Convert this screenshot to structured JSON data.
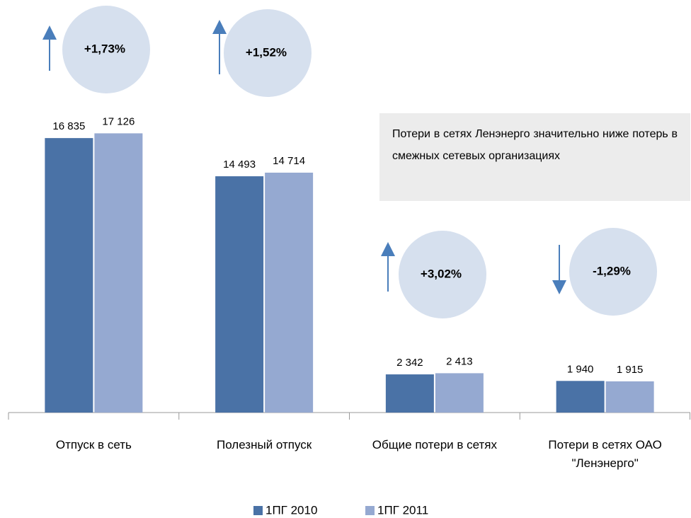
{
  "chart_data": {
    "type": "bar",
    "categories": [
      "Отпуск в сеть",
      "Полезный отпуск",
      "Общие потери в сетях",
      "Потери в сетях ОАО \"Ленэнерго\""
    ],
    "series": [
      {
        "name": "1ПГ 2010",
        "color": "#4a72a6",
        "values": [
          16835,
          14493,
          2342,
          1940
        ],
        "value_labels": [
          "16 835",
          "14 493",
          "2 342",
          "1 940"
        ]
      },
      {
        "name": "1ПГ 2011",
        "color": "#95a9d1",
        "values": [
          17126,
          14714,
          2413,
          1915
        ],
        "value_labels": [
          "17 126",
          "14 714",
          "2 413",
          "1 915"
        ]
      }
    ],
    "ylim": [
      0,
      25000
    ],
    "annotations": [
      "+1,73%",
      "+1,52%",
      "+3,02%",
      "-1,29%"
    ],
    "note": "Потери в сетях Ленэнерго значительно ниже потерь в смежных сетевых организациях",
    "legend": "bottom"
  }
}
